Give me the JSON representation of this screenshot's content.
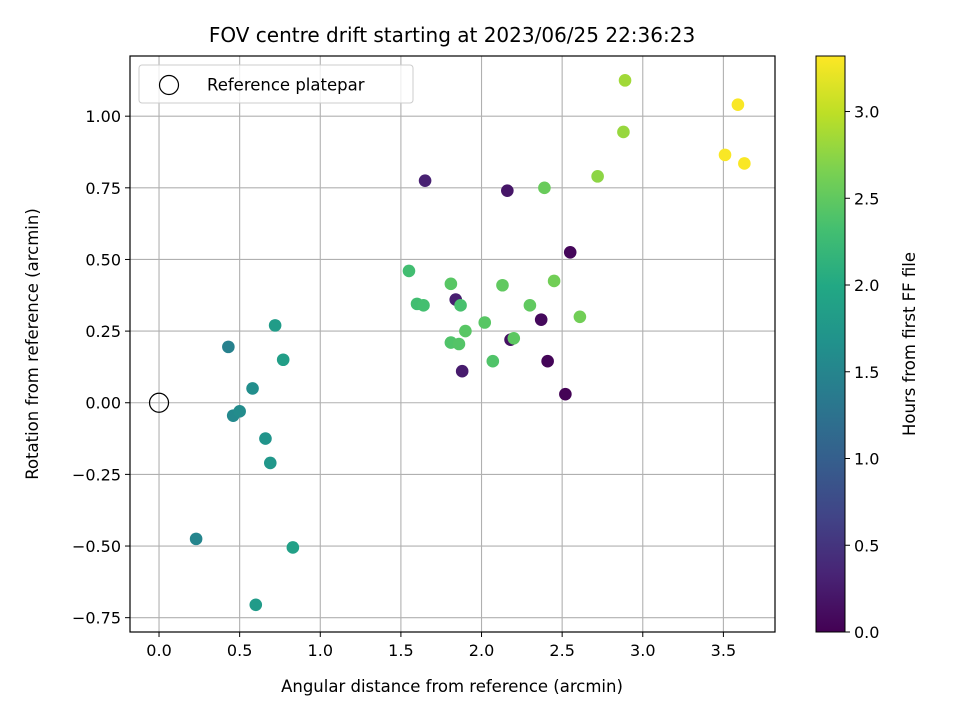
{
  "chart_data": {
    "type": "scatter",
    "title": "FOV centre drift starting at 2023/06/25 22:36:23",
    "xlabel": "Angular distance from reference (arcmin)",
    "ylabel": "Rotation from reference (arcmin)",
    "xlim": [
      -0.18,
      3.82
    ],
    "ylim": [
      -0.8,
      1.21
    ],
    "xticks": [
      "0.0",
      "0.5",
      "1.0",
      "1.5",
      "2.0",
      "2.5",
      "3.0",
      "3.5"
    ],
    "xtick_values": [
      0,
      0.5,
      1,
      1.5,
      2,
      2.5,
      3,
      3.5
    ],
    "yticks": [
      "−0.75",
      "−0.50",
      "−0.25",
      "0.00",
      "0.25",
      "0.50",
      "0.75",
      "1.00"
    ],
    "ytick_values": [
      -0.75,
      -0.5,
      -0.25,
      0,
      0.25,
      0.5,
      0.75,
      1.0
    ],
    "grid": true,
    "legend": {
      "position": "top-left",
      "label": "Reference platepar"
    },
    "reference_point": {
      "x": 0.0,
      "y": 0.0
    },
    "colorbar": {
      "label": "Hours from first FF file",
      "colormap": "viridis",
      "range": [
        0.0,
        3.32
      ],
      "ticks": [
        "0.0",
        "0.5",
        "1.0",
        "1.5",
        "2.0",
        "2.5",
        "3.0"
      ],
      "tick_values": [
        0,
        0.5,
        1,
        1.5,
        2,
        2.5,
        3
      ]
    },
    "points": [
      {
        "x": 2.52,
        "y": 0.03,
        "hours": 0.02
      },
      {
        "x": 2.41,
        "y": 0.145,
        "hours": 0.04
      },
      {
        "x": 2.55,
        "y": 0.525,
        "hours": 0.06
      },
      {
        "x": 2.37,
        "y": 0.29,
        "hours": 0.08
      },
      {
        "x": 2.18,
        "y": 0.22,
        "hours": 0.15
      },
      {
        "x": 2.16,
        "y": 0.74,
        "hours": 0.2
      },
      {
        "x": 1.88,
        "y": 0.11,
        "hours": 0.25
      },
      {
        "x": 1.84,
        "y": 0.36,
        "hours": 0.28
      },
      {
        "x": 1.65,
        "y": 0.775,
        "hours": 0.3
      },
      {
        "x": 0.43,
        "y": 0.195,
        "hours": 1.45
      },
      {
        "x": 0.23,
        "y": -0.475,
        "hours": 1.5
      },
      {
        "x": 0.46,
        "y": -0.045,
        "hours": 1.55
      },
      {
        "x": 0.5,
        "y": -0.03,
        "hours": 1.6
      },
      {
        "x": 0.58,
        "y": 0.05,
        "hours": 1.62
      },
      {
        "x": 0.66,
        "y": -0.125,
        "hours": 1.7
      },
      {
        "x": 0.69,
        "y": -0.21,
        "hours": 1.75
      },
      {
        "x": 0.6,
        "y": -0.705,
        "hours": 1.8
      },
      {
        "x": 0.72,
        "y": 0.27,
        "hours": 1.82
      },
      {
        "x": 0.77,
        "y": 0.15,
        "hours": 1.85
      },
      {
        "x": 0.83,
        "y": -0.505,
        "hours": 1.88
      },
      {
        "x": 1.55,
        "y": 0.46,
        "hours": 2.3
      },
      {
        "x": 1.6,
        "y": 0.345,
        "hours": 2.3
      },
      {
        "x": 1.64,
        "y": 0.34,
        "hours": 2.32
      },
      {
        "x": 1.81,
        "y": 0.415,
        "hours": 2.45
      },
      {
        "x": 1.87,
        "y": 0.34,
        "hours": 2.35
      },
      {
        "x": 1.81,
        "y": 0.21,
        "hours": 2.4
      },
      {
        "x": 1.86,
        "y": 0.205,
        "hours": 2.42
      },
      {
        "x": 1.9,
        "y": 0.25,
        "hours": 2.45
      },
      {
        "x": 2.02,
        "y": 0.28,
        "hours": 2.45
      },
      {
        "x": 2.07,
        "y": 0.145,
        "hours": 2.4
      },
      {
        "x": 2.13,
        "y": 0.41,
        "hours": 2.5
      },
      {
        "x": 2.2,
        "y": 0.225,
        "hours": 2.48
      },
      {
        "x": 2.3,
        "y": 0.34,
        "hours": 2.5
      },
      {
        "x": 2.39,
        "y": 0.75,
        "hours": 2.55
      },
      {
        "x": 2.45,
        "y": 0.425,
        "hours": 2.6
      },
      {
        "x": 2.61,
        "y": 0.3,
        "hours": 2.6
      },
      {
        "x": 2.72,
        "y": 0.79,
        "hours": 2.75
      },
      {
        "x": 2.88,
        "y": 0.945,
        "hours": 2.8
      },
      {
        "x": 2.89,
        "y": 1.125,
        "hours": 2.85
      },
      {
        "x": 3.51,
        "y": 0.865,
        "hours": 3.3
      },
      {
        "x": 3.59,
        "y": 1.04,
        "hours": 3.3
      },
      {
        "x": 3.63,
        "y": 0.835,
        "hours": 3.3
      }
    ]
  }
}
